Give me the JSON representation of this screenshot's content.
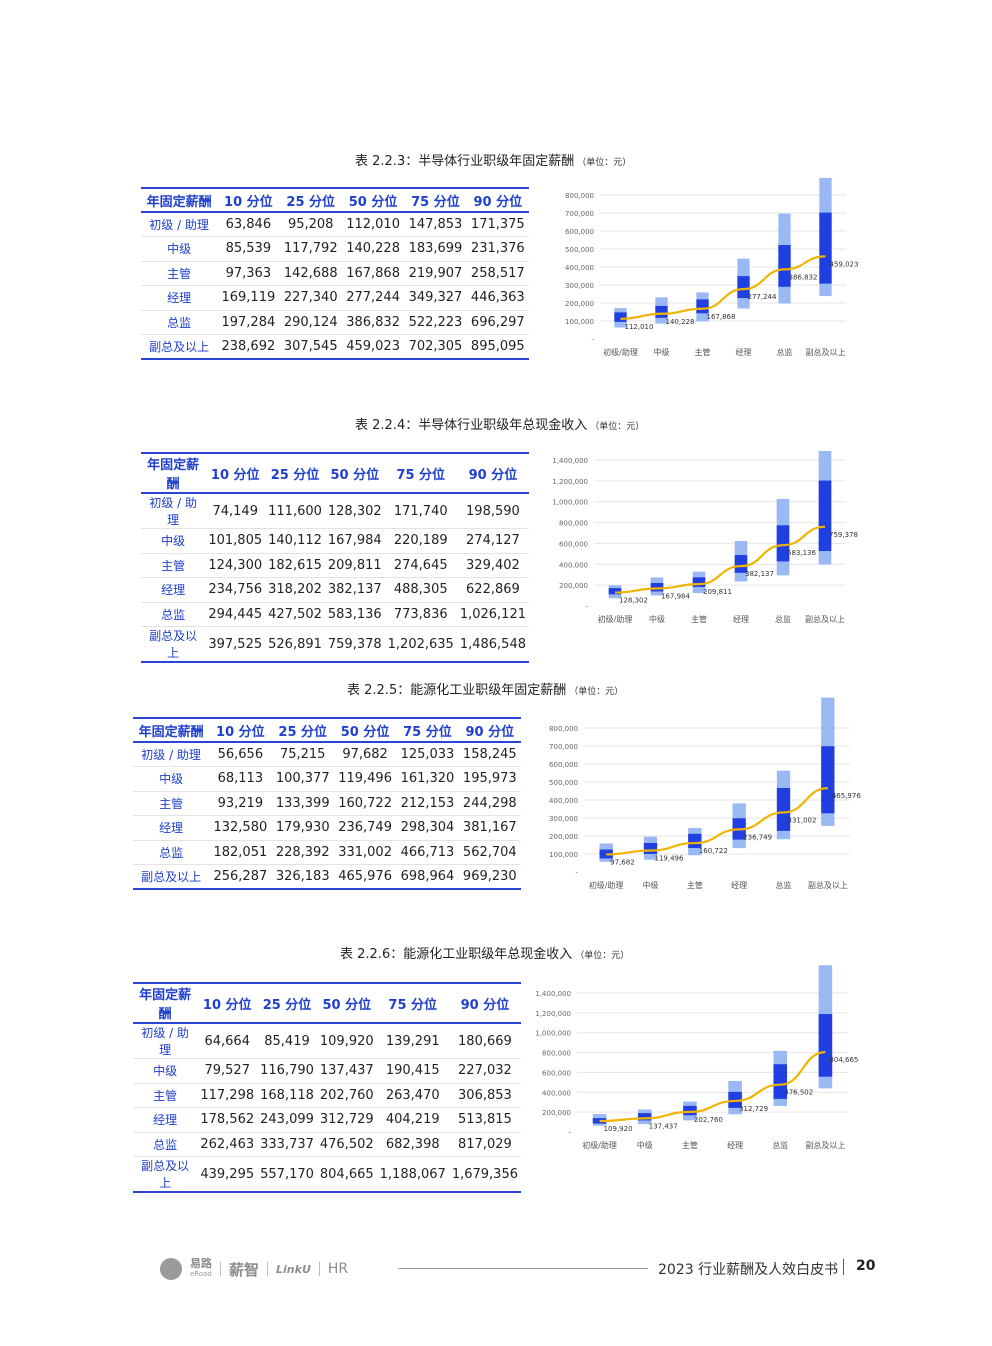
{
  "headers": [
    "年固定薪酬",
    "10 分位",
    "25 分位",
    "50 分位",
    "75 分位",
    "90 分位"
  ],
  "levels": [
    "初级 / 助理",
    "中级",
    "主管",
    "经理",
    "总监",
    "副总及以上"
  ],
  "chart_categories": [
    "初级/助理",
    "中级",
    "主管",
    "经理",
    "总监",
    "副总及以上"
  ],
  "colors": {
    "accent_blue": "#1f3fcf",
    "bar_light": "#9ab8f4",
    "bar_dark": "#1f3fe0",
    "line": "#f0b400"
  },
  "tables": [
    {
      "title": "表 2.2.3：半导体行业职级年固定薪酬",
      "unit": "（单位：元）",
      "rows": [
        [
          "63,846",
          "95,208",
          "112,010",
          "147,853",
          "171,375"
        ],
        [
          "85,539",
          "117,792",
          "140,228",
          "183,699",
          "231,376"
        ],
        [
          "97,363",
          "142,688",
          "167,868",
          "219,907",
          "258,517"
        ],
        [
          "169,119",
          "227,340",
          "277,244",
          "349,327",
          "446,363"
        ],
        [
          "197,284",
          "290,124",
          "386,832",
          "522,223",
          "696,297"
        ],
        [
          "238,692",
          "307,545",
          "459,023",
          "702,305",
          "895,095"
        ]
      ]
    },
    {
      "title": "表 2.2.4：半导体行业职级年总现金收入",
      "unit": "（单位：元）",
      "rows": [
        [
          "74,149",
          "111,600",
          "128,302",
          "171,740",
          "198,590"
        ],
        [
          "101,805",
          "140,112",
          "167,984",
          "220,189",
          "274,127"
        ],
        [
          "124,300",
          "182,615",
          "209,811",
          "274,645",
          "329,402"
        ],
        [
          "234,756",
          "318,202",
          "382,137",
          "488,305",
          "622,869"
        ],
        [
          "294,445",
          "427,502",
          "583,136",
          "773,836",
          "1,026,121"
        ],
        [
          "397,525",
          "526,891",
          "759,378",
          "1,202,635",
          "1,486,548"
        ]
      ]
    },
    {
      "title": "表 2.2.5：能源化工业职级年固定薪酬",
      "unit": "（单位：元）",
      "rows": [
        [
          "56,656",
          "75,215",
          "97,682",
          "125,033",
          "158,245"
        ],
        [
          "68,113",
          "100,377",
          "119,496",
          "161,320",
          "195,973"
        ],
        [
          "93,219",
          "133,399",
          "160,722",
          "212,153",
          "244,298"
        ],
        [
          "132,580",
          "179,930",
          "236,749",
          "298,304",
          "381,167"
        ],
        [
          "182,051",
          "228,392",
          "331,002",
          "466,713",
          "562,704"
        ],
        [
          "256,287",
          "326,183",
          "465,976",
          "698,964",
          "969,230"
        ]
      ]
    },
    {
      "title": "表 2.2.6：能源化工业职级年总现金收入",
      "unit": "（单位：元）",
      "rows": [
        [
          "64,664",
          "85,419",
          "109,920",
          "139,291",
          "180,669"
        ],
        [
          "79,527",
          "116,790",
          "137,437",
          "190,415",
          "227,032"
        ],
        [
          "117,298",
          "168,118",
          "202,760",
          "263,470",
          "306,853"
        ],
        [
          "178,562",
          "243,099",
          "312,729",
          "404,219",
          "513,815"
        ],
        [
          "262,463",
          "333,737",
          "476,502",
          "682,398",
          "817,029"
        ],
        [
          "439,295",
          "557,170",
          "804,665",
          "1,188,067",
          "1,679,356"
        ]
      ]
    }
  ],
  "chart_data": [
    {
      "type": "bar",
      "categories": [
        "初级/助理",
        "中级",
        "主管",
        "经理",
        "总监",
        "副总及以上"
      ],
      "p10": [
        63846,
        85539,
        97363,
        169119,
        197284,
        238692
      ],
      "p25": [
        95208,
        117792,
        142688,
        227340,
        290124,
        307545
      ],
      "p50": [
        112010,
        140228,
        167868,
        277244,
        386832,
        459023
      ],
      "p75": [
        147853,
        183699,
        219907,
        349327,
        522223,
        702305
      ],
      "p90": [
        171375,
        231376,
        258517,
        446363,
        696297,
        895095
      ],
      "ylim": [
        0,
        800000
      ],
      "yticks": [
        "-",
        "100,000",
        "200,000",
        "300,000",
        "400,000",
        "500,000",
        "600,000",
        "700,000",
        "800,000"
      ],
      "data_labels": [
        "112,010",
        "140,228",
        "167,868",
        "277,244",
        "386,832",
        "459,023"
      ],
      "grid": true
    },
    {
      "type": "bar",
      "categories": [
        "初级/助理",
        "中级",
        "主管",
        "经理",
        "总监",
        "副总及以上"
      ],
      "p10": [
        74149,
        101805,
        124300,
        234756,
        294445,
        397525
      ],
      "p25": [
        111600,
        140112,
        182615,
        318202,
        427502,
        526891
      ],
      "p50": [
        128302,
        167984,
        209811,
        382137,
        583136,
        759378
      ],
      "p75": [
        171740,
        220189,
        274645,
        488305,
        773836,
        1202635
      ],
      "p90": [
        198590,
        274127,
        329402,
        622869,
        1026121,
        1486548
      ],
      "ylim": [
        0,
        1400000
      ],
      "yticks": [
        "-",
        "200,000",
        "400,000",
        "600,000",
        "800,000",
        "1,000,000",
        "1,200,000",
        "1,400,000"
      ],
      "data_labels": [
        "128,302",
        "167,984",
        "209,811",
        "382,137",
        "583,136",
        "759,378"
      ],
      "grid": true
    },
    {
      "type": "bar",
      "categories": [
        "初级/助理",
        "中级",
        "主管",
        "经理",
        "总监",
        "副总及以上"
      ],
      "p10": [
        56656,
        68113,
        93219,
        132580,
        182051,
        256287
      ],
      "p25": [
        75215,
        100377,
        133399,
        179930,
        228392,
        326183
      ],
      "p50": [
        97682,
        119496,
        160722,
        236749,
        331002,
        465976
      ],
      "p75": [
        125033,
        161320,
        212153,
        298304,
        466713,
        698964
      ],
      "p90": [
        158245,
        195973,
        244298,
        381167,
        562704,
        969230
      ],
      "ylim": [
        0,
        800000
      ],
      "yticks": [
        "-",
        "100,000",
        "200,000",
        "300,000",
        "400,000",
        "500,000",
        "600,000",
        "700,000",
        "800,000"
      ],
      "data_labels": [
        "97,682",
        "119,496",
        "160,722",
        "236,749",
        "331,002",
        "465,976"
      ],
      "grid": true
    },
    {
      "type": "bar",
      "categories": [
        "初级/助理",
        "中级",
        "主管",
        "经理",
        "总监",
        "副总及以上"
      ],
      "p10": [
        64664,
        79527,
        117298,
        178562,
        262463,
        439295
      ],
      "p25": [
        85419,
        116790,
        168118,
        243099,
        333737,
        557170
      ],
      "p50": [
        109920,
        137437,
        202760,
        312729,
        476502,
        804665
      ],
      "p75": [
        139291,
        190415,
        263470,
        404219,
        682398,
        1188067
      ],
      "p90": [
        180669,
        227032,
        306853,
        513815,
        817029,
        1679356
      ],
      "ylim": [
        0,
        1400000
      ],
      "yticks": [
        "-",
        "200,000",
        "400,000",
        "600,000",
        "800,000",
        "1,000,000",
        "1,200,000",
        "1,400,000"
      ],
      "data_labels": [
        "109,920",
        "137,437",
        "202,760",
        "312,729",
        "476,502",
        "804,665"
      ],
      "grid": true
    }
  ],
  "footer": {
    "logo1": "易路",
    "logo1_sub": "eRoad",
    "logo2": "薪智",
    "logo3": "LinkU",
    "logo4": "HR",
    "title": "2023 行业薪酬及人效白皮书",
    "page": "20"
  }
}
